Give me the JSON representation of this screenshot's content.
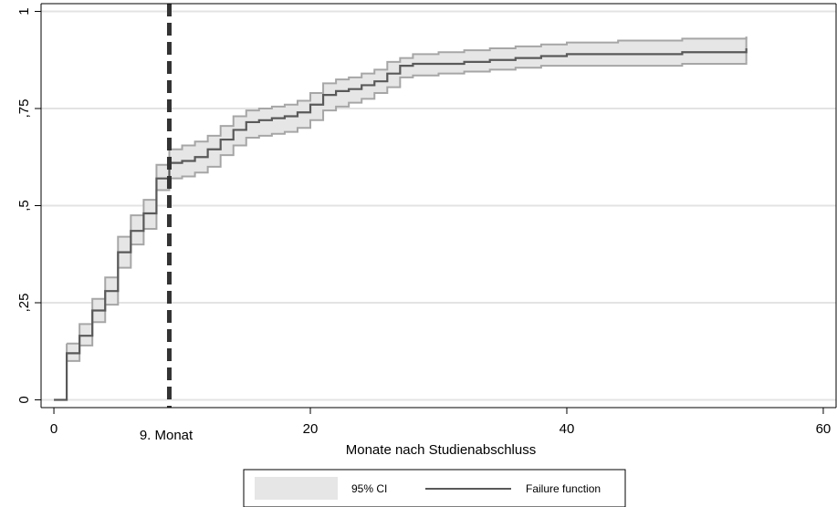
{
  "chart_data": {
    "type": "line",
    "xlabel": "Monate nach Studienabschluss",
    "ylabel": "",
    "xlim": [
      -1,
      61
    ],
    "ylim": [
      -0.02,
      1.02
    ],
    "x_ticks": [
      0,
      20,
      40,
      60
    ],
    "x_tick_labels": [
      "0",
      "20",
      "40",
      "60"
    ],
    "y_ticks": [
      0,
      0.25,
      0.5,
      0.75,
      1
    ],
    "y_tick_labels": [
      "0",
      ",25",
      ",5",
      ",75",
      "1"
    ],
    "grid": "horizontal",
    "reference_line": {
      "x": 9,
      "label": "9. Monat",
      "style": "dashed"
    },
    "legend": {
      "placement": "bottom",
      "entries": [
        {
          "label": "95% CI",
          "kind": "band",
          "color": "#e6e6e6"
        },
        {
          "label": "Failure function",
          "kind": "line",
          "color": "#595959"
        }
      ]
    },
    "series": [
      {
        "name": "Failure function",
        "step": true,
        "x": [
          0,
          1,
          2,
          3,
          4,
          5,
          6,
          7,
          8,
          9,
          10,
          11,
          12,
          13,
          14,
          15,
          16,
          17,
          18,
          19,
          20,
          21,
          22,
          23,
          24,
          25,
          26,
          27,
          28,
          30,
          32,
          34,
          36,
          38,
          40,
          44,
          49,
          54
        ],
        "y": [
          0,
          0.12,
          0.165,
          0.23,
          0.28,
          0.38,
          0.435,
          0.48,
          0.57,
          0.61,
          0.615,
          0.625,
          0.645,
          0.67,
          0.695,
          0.715,
          0.72,
          0.725,
          0.73,
          0.74,
          0.76,
          0.785,
          0.795,
          0.8,
          0.81,
          0.82,
          0.84,
          0.86,
          0.865,
          0.865,
          0.87,
          0.875,
          0.88,
          0.885,
          0.89,
          0.89,
          0.895,
          0.905
        ],
        "lower": [
          0,
          0.1,
          0.14,
          0.2,
          0.245,
          0.34,
          0.4,
          0.44,
          0.54,
          0.57,
          0.575,
          0.585,
          0.6,
          0.63,
          0.655,
          0.675,
          0.68,
          0.685,
          0.69,
          0.7,
          0.72,
          0.745,
          0.755,
          0.765,
          0.775,
          0.79,
          0.805,
          0.83,
          0.835,
          0.84,
          0.845,
          0.85,
          0.855,
          0.86,
          0.86,
          0.86,
          0.865,
          0.87
        ],
        "upper": [
          0,
          0.145,
          0.195,
          0.26,
          0.315,
          0.42,
          0.475,
          0.515,
          0.605,
          0.645,
          0.655,
          0.665,
          0.68,
          0.705,
          0.73,
          0.745,
          0.75,
          0.755,
          0.76,
          0.77,
          0.79,
          0.815,
          0.825,
          0.83,
          0.84,
          0.85,
          0.87,
          0.88,
          0.89,
          0.895,
          0.9,
          0.905,
          0.91,
          0.915,
          0.92,
          0.925,
          0.93,
          0.935
        ]
      }
    ]
  }
}
